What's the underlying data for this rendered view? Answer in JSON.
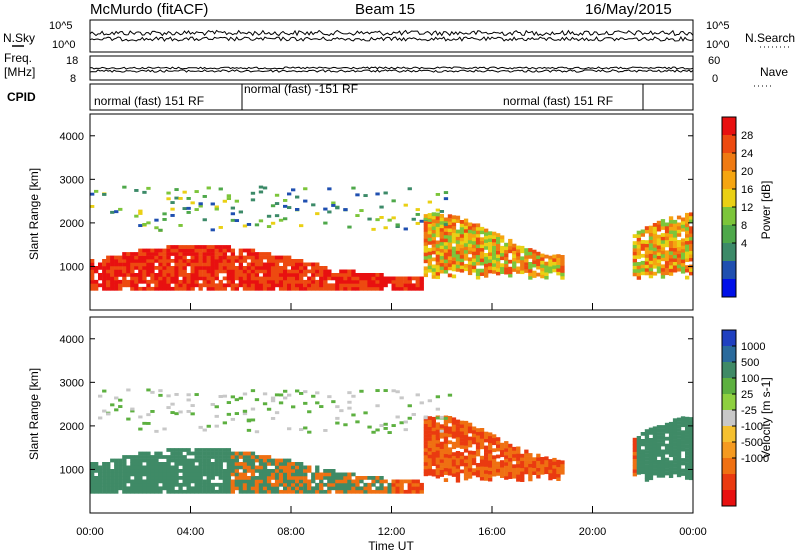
{
  "header": {
    "station": "McMurdo (fitACF)",
    "beam": "Beam 15",
    "date": "16/May/2015"
  },
  "side_labels": {
    "left": [
      "N.Sky",
      "Freq.",
      "[MHz]",
      "CPID"
    ],
    "right": [
      "N.Search",
      "Nave"
    ]
  },
  "programs": [
    "normal (fast) 151 RF",
    "normal (fast) -151 RF",
    "normal (fast) 151 RF"
  ],
  "chart_data": [
    {
      "type": "line",
      "panel": "noise",
      "series": [
        {
          "name": "N.Sky"
        },
        {
          "name": "N.Search"
        }
      ],
      "y_ticks_left": [
        "10^5",
        "10^0"
      ],
      "y_ticks_right": [
        "10^5",
        "10^0"
      ]
    },
    {
      "type": "line",
      "panel": "frequency",
      "series": [
        {
          "name": "Freq."
        },
        {
          "name": "Nave"
        }
      ],
      "y_ticks_left": [
        "18",
        "8"
      ],
      "y_ticks_right": [
        "60",
        "0"
      ]
    },
    {
      "type": "heatmap",
      "panel": "power",
      "ylabel": "Slant Range [km]",
      "y_ticks": [
        "1000",
        "2000",
        "3000",
        "4000"
      ],
      "colorbar_label": "Power [dB]",
      "colorbar_ticks": [
        "4",
        "8",
        "12",
        "16",
        "20",
        "24",
        "28"
      ],
      "colorbar_colors": [
        "#0010e8",
        "#1f4fb0",
        "#3c8a68",
        "#4ea84a",
        "#7cc53a",
        "#ead014",
        "#f5a511",
        "#ef7a12",
        "#ed4a10",
        "#e81010"
      ]
    },
    {
      "type": "heatmap",
      "panel": "velocity",
      "ylabel": "Slant Range [km]",
      "y_ticks": [
        "1000",
        "2000",
        "3000",
        "4000"
      ],
      "colorbar_label": "Velocity [m s-1]",
      "colorbar_ticks": [
        "1000",
        "500",
        "100",
        "25",
        "-25",
        "-100",
        "-500",
        "-1000"
      ],
      "colorbar_colors": [
        "#2040c0",
        "#2a6a9c",
        "#3f8a66",
        "#5db040",
        "#8ed040",
        "#c8c8c8",
        "#f5c030",
        "#f59a20",
        "#ef7012",
        "#ea3a10",
        "#e81010"
      ]
    }
  ],
  "x_axis": {
    "label": "Time UT",
    "ticks": [
      "00:00",
      "04:00",
      "08:00",
      "12:00",
      "16:00",
      "20:00",
      "00:00"
    ]
  }
}
